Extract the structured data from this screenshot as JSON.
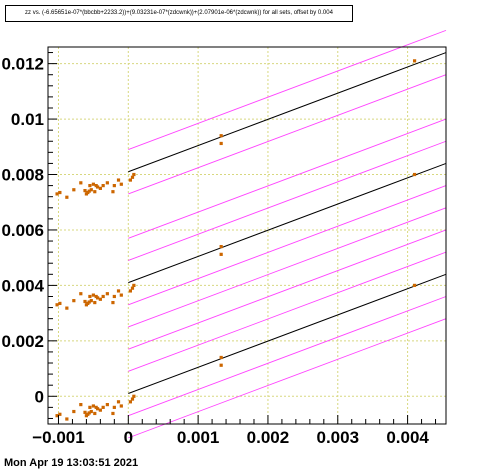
{
  "timestamp": "Mon Apr 19 13:03:51 2021",
  "colors": {
    "points": "#cc6600",
    "fit": "#000000",
    "band": "#ff44ff",
    "grid": "#d8d880",
    "axis": "#000000"
  },
  "chart_data": {
    "type": "scatter",
    "title": "zz vs. (-6.65651e-07*(bbcbb+2233.2))+(9.03231e-07*(zdcwnk))+(2.07901e-06*(zdcwnk)) for all sets, offset by 0.004",
    "xlabel": "",
    "ylabel": "",
    "xlim": [
      -0.00115,
      0.00455
    ],
    "ylim": [
      -0.001,
      0.0126
    ],
    "grid": true,
    "x_ticks": [
      -0.001,
      0,
      0.001,
      0.002,
      0.003,
      0.004
    ],
    "x_tick_labels": [
      "−0.001",
      "0",
      "0.001",
      "0.002",
      "0.003",
      "0.004"
    ],
    "y_ticks": [
      0,
      0.002,
      0.004,
      0.006,
      0.008,
      0.01,
      0.012
    ],
    "y_tick_labels": [
      "0",
      "0.002",
      "0.004",
      "0.006",
      "0.008",
      "0.01",
      "0.012"
    ],
    "sets": [
      {
        "offset": 0,
        "fit": {
          "x": [
            0,
            0.00455
          ],
          "y": [
            0.0001,
            0.0044
          ]
        },
        "bands": [
          {
            "x": [
              0,
              0.00455
            ],
            "y": [
              0.0009,
              0.0052
            ]
          },
          {
            "x": [
              0,
              0.00455
            ],
            "y": [
              -0.0007,
              0.0036
            ]
          },
          {
            "x": [
              0,
              0.00455
            ],
            "y": [
              0.0017,
              0.006
            ]
          },
          {
            "x": [
              0,
              0.00455
            ],
            "y": [
              -0.0015,
              0.0028
            ]
          }
        ],
        "points": [
          [
            -0.00102,
            -0.0007
          ],
          [
            -0.00098,
            -0.00065
          ],
          [
            -0.00088,
            -0.00082
          ],
          [
            -0.00078,
            -0.00055
          ],
          [
            -0.00068,
            -0.0003
          ],
          [
            -0.00062,
            -0.00058
          ],
          [
            -0.0006,
            -0.0007
          ],
          [
            -0.00058,
            -0.00065
          ],
          [
            -0.00056,
            -0.0006
          ],
          [
            -0.00055,
            -0.0004
          ],
          [
            -0.00053,
            -0.00055
          ],
          [
            -0.0005,
            -0.00035
          ],
          [
            -0.00048,
            -0.00062
          ],
          [
            -0.00046,
            -0.0004
          ],
          [
            -0.00044,
            -0.00045
          ],
          [
            -0.0004,
            -0.0005
          ],
          [
            -0.00036,
            -0.0004
          ],
          [
            -0.0003,
            -0.0003
          ],
          [
            -0.00022,
            -0.00062
          ],
          [
            -0.0002,
            -0.0004
          ],
          [
            -0.00014,
            -0.0002
          ],
          [
            -0.0001,
            -0.00035
          ],
          [
            3e-05,
            -0.0002
          ],
          [
            6e-05,
            -0.0001
          ],
          [
            8e-05,
            0.0
          ],
          [
            0.00133,
            0.00112
          ],
          [
            0.00133,
            0.0014
          ],
          [
            0.0041,
            0.004
          ]
        ]
      },
      {
        "offset": 0.004,
        "fit": {
          "x": [
            0,
            0.00455
          ],
          "y": [
            0.0041,
            0.0084
          ]
        },
        "bands": [
          {
            "x": [
              0,
              0.00455
            ],
            "y": [
              0.0049,
              0.0092
            ]
          },
          {
            "x": [
              0,
              0.00455
            ],
            "y": [
              0.0033,
              0.0076
            ]
          },
          {
            "x": [
              0,
              0.00455
            ],
            "y": [
              0.0057,
              0.01
            ]
          },
          {
            "x": [
              0,
              0.00455
            ],
            "y": [
              0.0025,
              0.0068
            ]
          }
        ],
        "points": [
          [
            -0.00102,
            0.0033
          ],
          [
            -0.00098,
            0.00335
          ],
          [
            -0.00088,
            0.00318
          ],
          [
            -0.00078,
            0.00345
          ],
          [
            -0.00068,
            0.0037
          ],
          [
            -0.00062,
            0.00342
          ],
          [
            -0.0006,
            0.0033
          ],
          [
            -0.00058,
            0.00335
          ],
          [
            -0.00056,
            0.0034
          ],
          [
            -0.00055,
            0.0036
          ],
          [
            -0.00053,
            0.00345
          ],
          [
            -0.0005,
            0.00365
          ],
          [
            -0.00048,
            0.00338
          ],
          [
            -0.00046,
            0.0036
          ],
          [
            -0.00044,
            0.00355
          ],
          [
            -0.0004,
            0.0035
          ],
          [
            -0.00036,
            0.0036
          ],
          [
            -0.0003,
            0.0037
          ],
          [
            -0.00022,
            0.00338
          ],
          [
            -0.0002,
            0.0036
          ],
          [
            -0.00014,
            0.0038
          ],
          [
            -0.0001,
            0.00365
          ],
          [
            3e-05,
            0.0038
          ],
          [
            6e-05,
            0.0039
          ],
          [
            8e-05,
            0.004
          ],
          [
            0.00133,
            0.00512
          ],
          [
            0.00133,
            0.0054
          ],
          [
            0.0041,
            0.008
          ]
        ]
      },
      {
        "offset": 0.008,
        "fit": {
          "x": [
            0,
            0.00455
          ],
          "y": [
            0.0081,
            0.0124
          ]
        },
        "bands": [
          {
            "x": [
              0,
              0.00455
            ],
            "y": [
              0.0089,
              0.0132
            ]
          },
          {
            "x": [
              0,
              0.00455
            ],
            "y": [
              0.0073,
              0.0116
            ]
          }
        ],
        "points": [
          [
            -0.00102,
            0.0073
          ],
          [
            -0.00098,
            0.00735
          ],
          [
            -0.00088,
            0.00718
          ],
          [
            -0.00078,
            0.00745
          ],
          [
            -0.00068,
            0.0077
          ],
          [
            -0.00062,
            0.00742
          ],
          [
            -0.0006,
            0.0073
          ],
          [
            -0.00058,
            0.00735
          ],
          [
            -0.00056,
            0.0074
          ],
          [
            -0.00055,
            0.0076
          ],
          [
            -0.00053,
            0.00745
          ],
          [
            -0.0005,
            0.00765
          ],
          [
            -0.00048,
            0.00738
          ],
          [
            -0.00046,
            0.0076
          ],
          [
            -0.00044,
            0.00755
          ],
          [
            -0.0004,
            0.0075
          ],
          [
            -0.00036,
            0.0076
          ],
          [
            -0.0003,
            0.0077
          ],
          [
            -0.00022,
            0.00738
          ],
          [
            -0.0002,
            0.0076
          ],
          [
            -0.00014,
            0.0078
          ],
          [
            -0.0001,
            0.00765
          ],
          [
            3e-05,
            0.0078
          ],
          [
            6e-05,
            0.0079
          ],
          [
            8e-05,
            0.008
          ],
          [
            0.00133,
            0.00912
          ],
          [
            0.00133,
            0.0094
          ],
          [
            0.0041,
            0.0121
          ]
        ]
      }
    ]
  }
}
